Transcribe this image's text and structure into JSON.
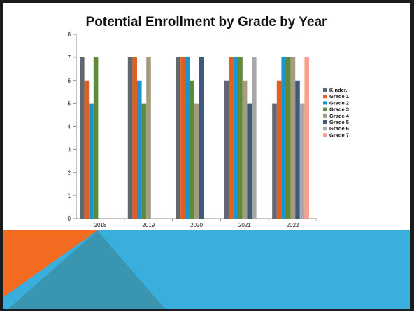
{
  "chart_data": {
    "type": "bar",
    "title": "Potential Enrollment by Grade by Year",
    "xlabel": "",
    "ylabel": "",
    "ylim": [
      0,
      8
    ],
    "yticks": [
      0,
      1,
      2,
      3,
      4,
      5,
      6,
      7,
      8
    ],
    "grid": false,
    "legend_position": "right",
    "categories": [
      "2018",
      "2019",
      "2020",
      "2021",
      "2022"
    ],
    "series": [
      {
        "name": "Kinder.",
        "color": "#5f6770",
        "values": [
          7,
          7,
          7,
          6,
          5
        ]
      },
      {
        "name": "Grade 1",
        "color": "#e06020",
        "values": [
          6,
          7,
          7,
          7,
          6
        ]
      },
      {
        "name": "Grade 2",
        "color": "#1a95d1",
        "values": [
          5,
          6,
          7,
          7,
          7
        ]
      },
      {
        "name": "Grade 3",
        "color": "#5e8a3a",
        "values": [
          7,
          5,
          6,
          7,
          7
        ]
      },
      {
        "name": "Grade 4",
        "color": "#a89a80",
        "values": [
          null,
          7,
          5,
          6,
          7
        ]
      },
      {
        "name": "Grade 5",
        "color": "#3f5a78",
        "values": [
          null,
          null,
          7,
          5,
          6
        ]
      },
      {
        "name": "Grade 6",
        "color": "#a8a8a8",
        "values": [
          null,
          null,
          null,
          7,
          5
        ]
      },
      {
        "name": "Grade 7",
        "color": "#f4a08a",
        "values": [
          null,
          null,
          null,
          null,
          7
        ]
      }
    ]
  },
  "theme": {
    "footer_blue": "#3aaedc",
    "footer_orange": "#f26b21",
    "footer_teal": "#3a96b0"
  }
}
